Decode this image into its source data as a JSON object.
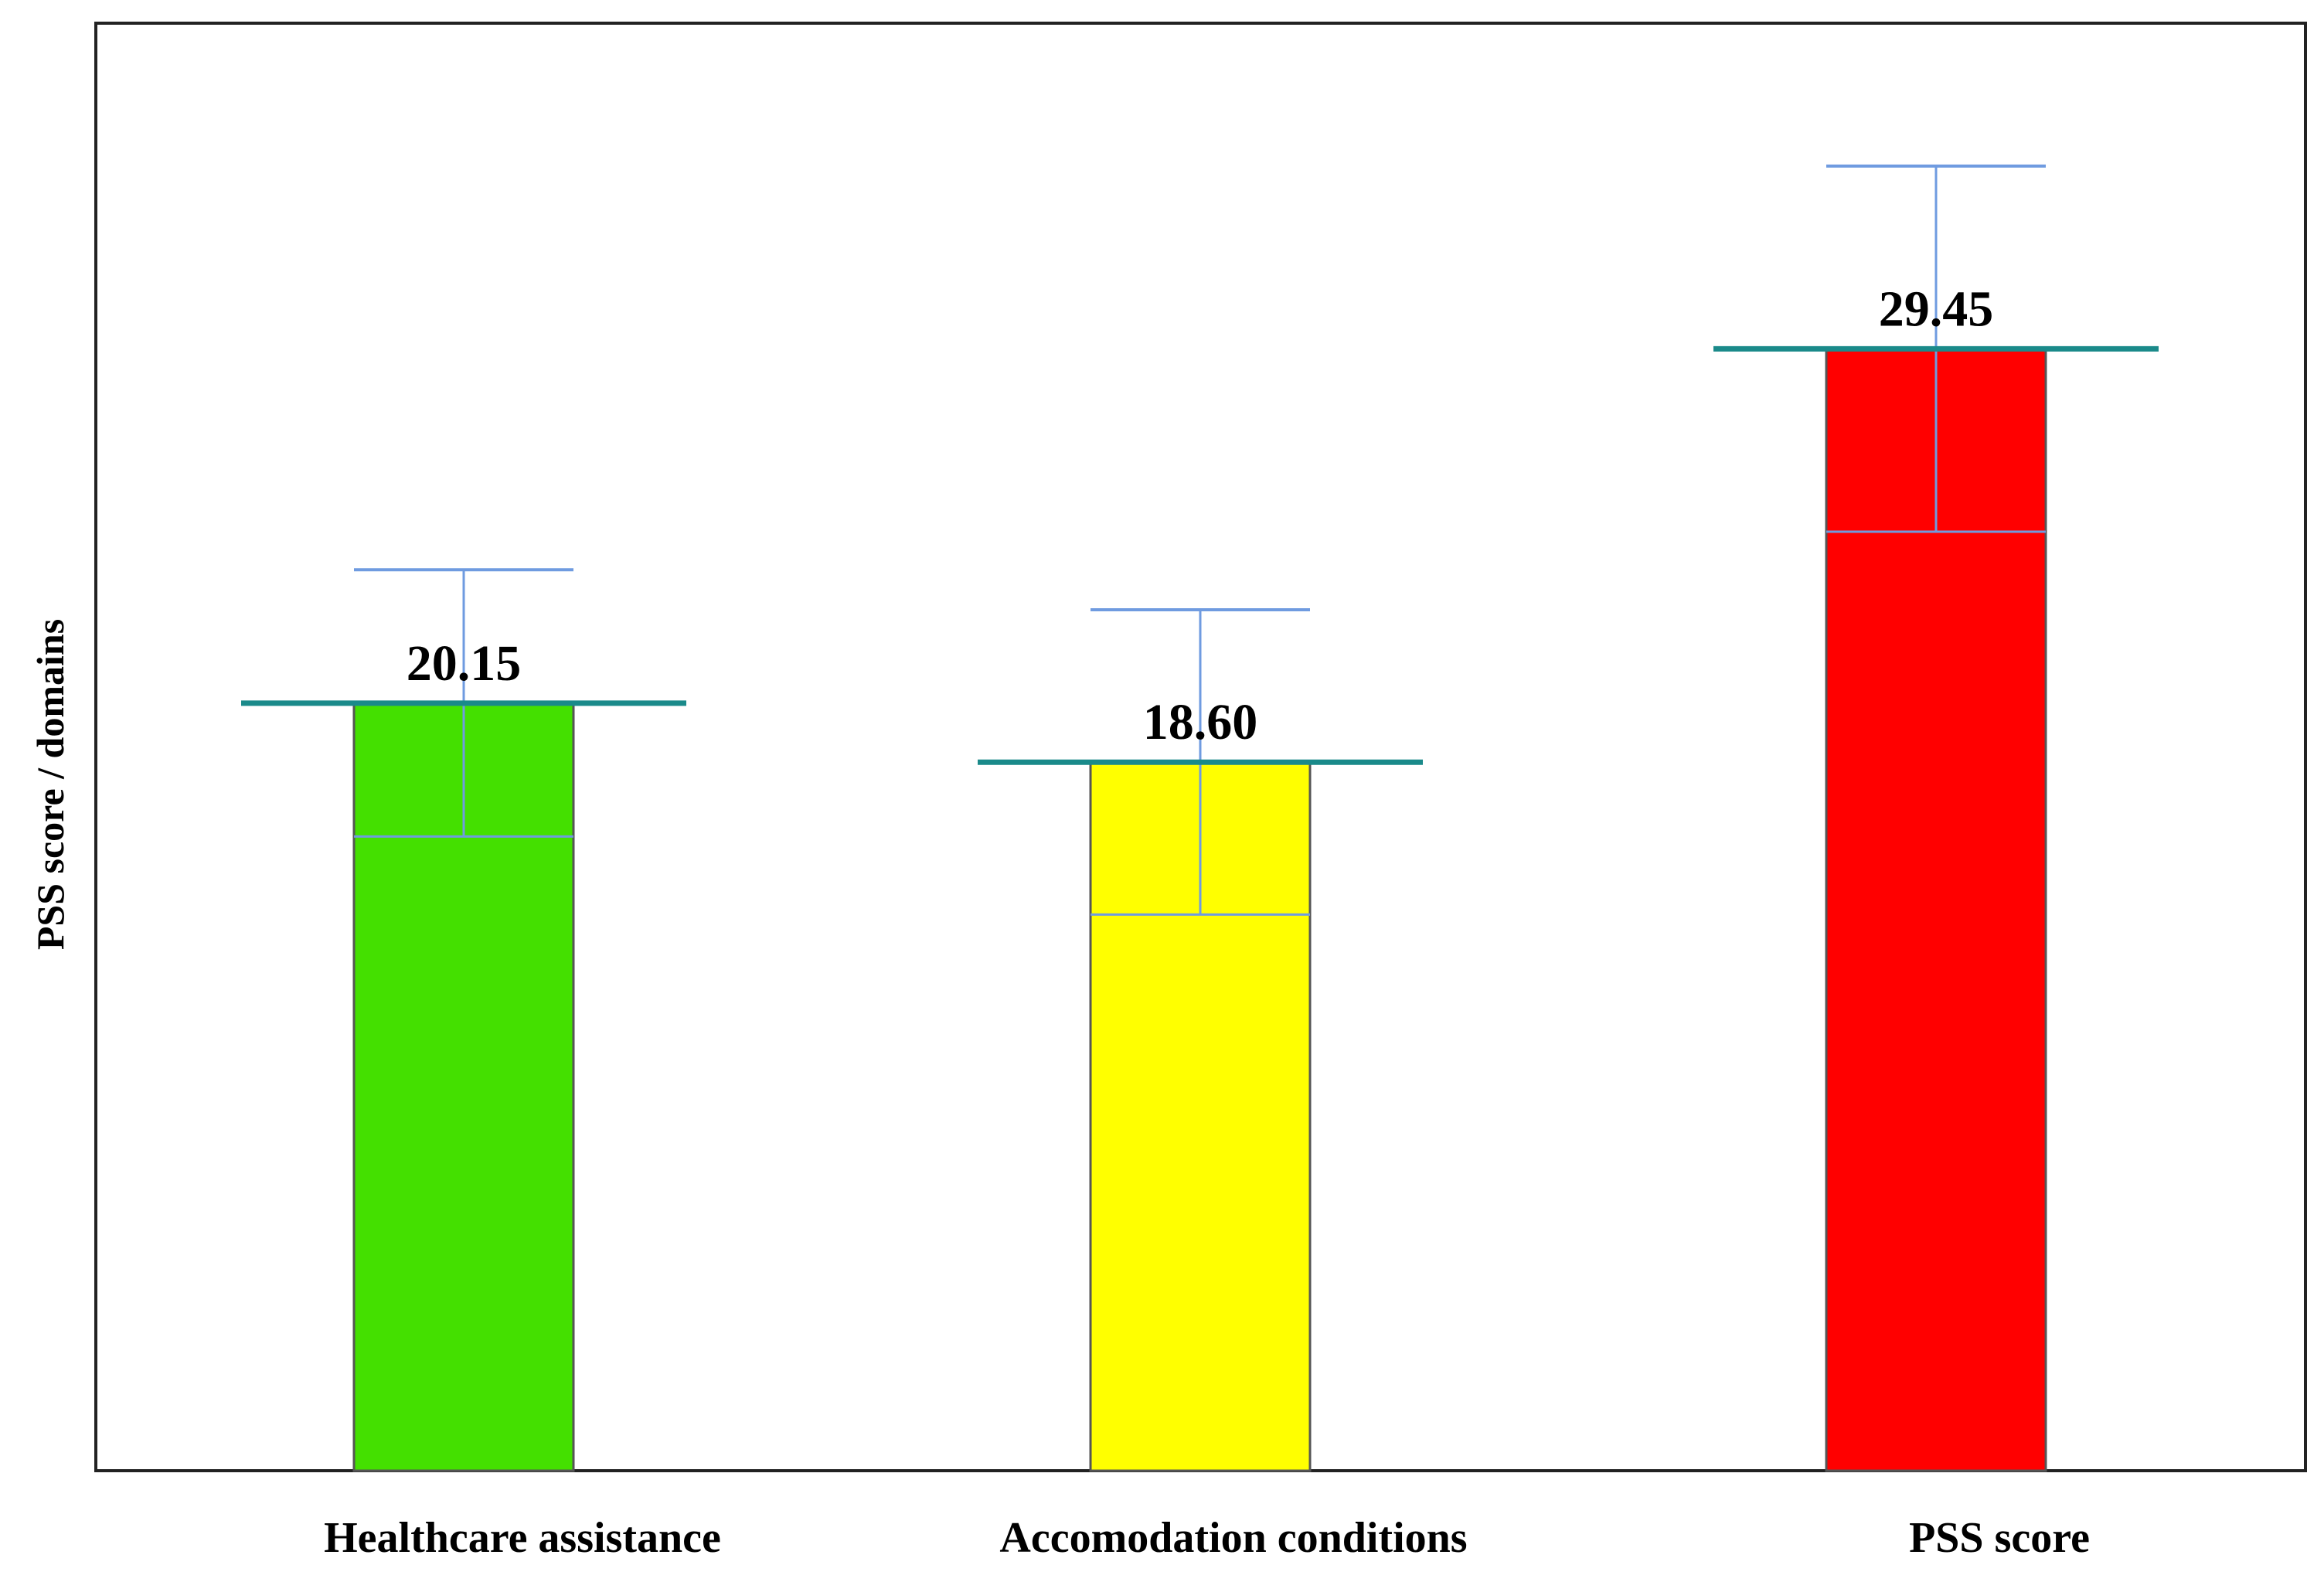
{
  "chart_data": {
    "type": "bar",
    "title": "",
    "xlabel": "",
    "ylabel": "PSS score / domains",
    "ylim": [
      0,
      38
    ],
    "grid": false,
    "legend": "none",
    "categories": [
      "Healthcare assistance",
      "Accomodation conditions",
      "PSS score"
    ],
    "values": [
      20.15,
      18.6,
      29.45
    ],
    "value_labels": [
      "20.15",
      "18.60",
      "29.45"
    ],
    "error": [
      3.5,
      4.0,
      4.8
    ],
    "colors": [
      "#44e000",
      "#ffff00",
      "#ff0000"
    ],
    "mean_line_color": "#1a8a8a",
    "error_bar_color": "#6f9be0"
  }
}
